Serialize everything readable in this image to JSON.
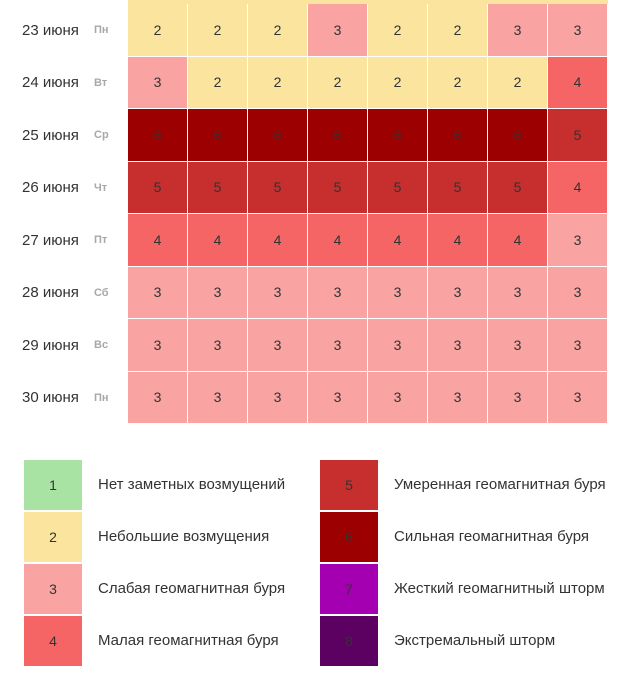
{
  "chart_data": {
    "type": "heatmap",
    "rows": [
      {
        "date": "23 июня",
        "dow": "Пн",
        "values": [
          2,
          2,
          2,
          3,
          2,
          2,
          3,
          3
        ]
      },
      {
        "date": "24 июня",
        "dow": "Вт",
        "values": [
          3,
          2,
          2,
          2,
          2,
          2,
          2,
          4
        ]
      },
      {
        "date": "25 июня",
        "dow": "Ср",
        "values": [
          6,
          6,
          6,
          6,
          6,
          6,
          6,
          5
        ]
      },
      {
        "date": "26 июня",
        "dow": "Чт",
        "values": [
          5,
          5,
          5,
          5,
          5,
          5,
          5,
          4
        ]
      },
      {
        "date": "27 июня",
        "dow": "Пт",
        "values": [
          4,
          4,
          4,
          4,
          4,
          4,
          4,
          3
        ]
      },
      {
        "date": "28 июня",
        "dow": "Сб",
        "values": [
          3,
          3,
          3,
          3,
          3,
          3,
          3,
          3
        ]
      },
      {
        "date": "29 июня",
        "dow": "Вс",
        "values": [
          3,
          3,
          3,
          3,
          3,
          3,
          3,
          3
        ]
      },
      {
        "date": "30 июня",
        "dow": "Пн",
        "values": [
          3,
          3,
          3,
          3,
          3,
          3,
          3,
          3
        ]
      }
    ],
    "colors": {
      "1": "#a9e3a3",
      "2": "#fbe59e",
      "3": "#f9a3a3",
      "4": "#f56565",
      "5": "#c72e2e",
      "6": "#9c0000",
      "7": "#a400b2",
      "8": "#5c0062"
    },
    "legend": [
      {
        "level": "1",
        "label": "Нет заметных возмущений"
      },
      {
        "level": "2",
        "label": "Небольшие возмущения"
      },
      {
        "level": "3",
        "label": "Слабая геомагнитная буря"
      },
      {
        "level": "4",
        "label": "Малая геомагнитная буря"
      },
      {
        "level": "5",
        "label": "Умеренная геомагнитная буря"
      },
      {
        "level": "6",
        "label": "Сильная геомагнитная буря"
      },
      {
        "level": "7",
        "label": "Жесткий геомагнитный шторм"
      },
      {
        "level": "8",
        "label": "Экстремальный шторм"
      }
    ]
  }
}
